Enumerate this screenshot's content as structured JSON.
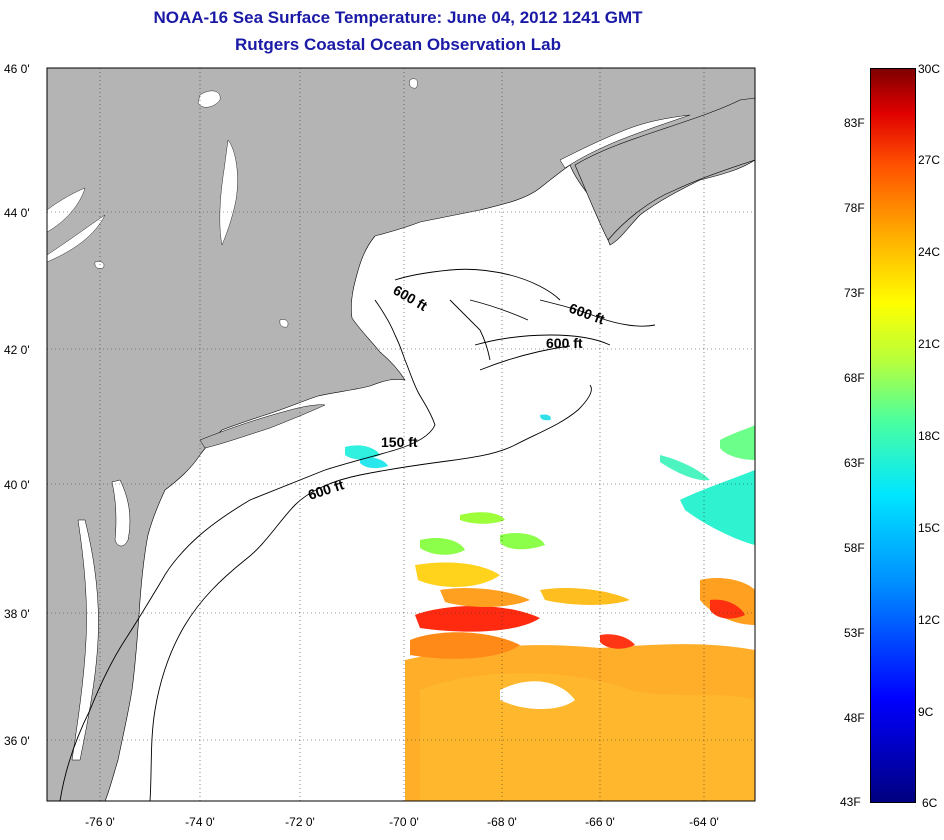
{
  "header": {
    "title_line1": "NOAA-16 Sea Surface Temperature:  June 04, 2012 1241 GMT",
    "title_line2": "Rutgers Coastal Ocean Observation Lab"
  },
  "map": {
    "lat_labels": [
      "46 0'",
      "44 0'",
      "42 0'",
      "40 0'",
      "38 0'",
      "36 0'"
    ],
    "lon_labels": [
      "-76 0'",
      "-74 0'",
      "-72 0'",
      "-70 0'",
      "-68 0'",
      "-66 0'",
      "-64 0'"
    ],
    "depth_labels": [
      "600 ft",
      "600 ft",
      "600 ft",
      "150 ft",
      "600 ft"
    ],
    "colors": {
      "land": "#b4b4b4",
      "ocean": "#ffffff",
      "title": "#1a1aa6"
    }
  },
  "colorbar": {
    "fahrenheit_labels": [
      "83F",
      "78F",
      "73F",
      "68F",
      "63F",
      "58F",
      "53F",
      "48F",
      "43F"
    ],
    "celsius_labels": [
      "30C",
      "27C",
      "24C",
      "21C",
      "18C",
      "15C",
      "12C",
      "9C",
      "6C"
    ],
    "colors": [
      "#00007f",
      "#0000ff",
      "#0090ff",
      "#00e6ff",
      "#4bff9f",
      "#b5ff3e",
      "#ffff00",
      "#ffb000",
      "#ff5000",
      "#e00000",
      "#7f0000"
    ]
  }
}
